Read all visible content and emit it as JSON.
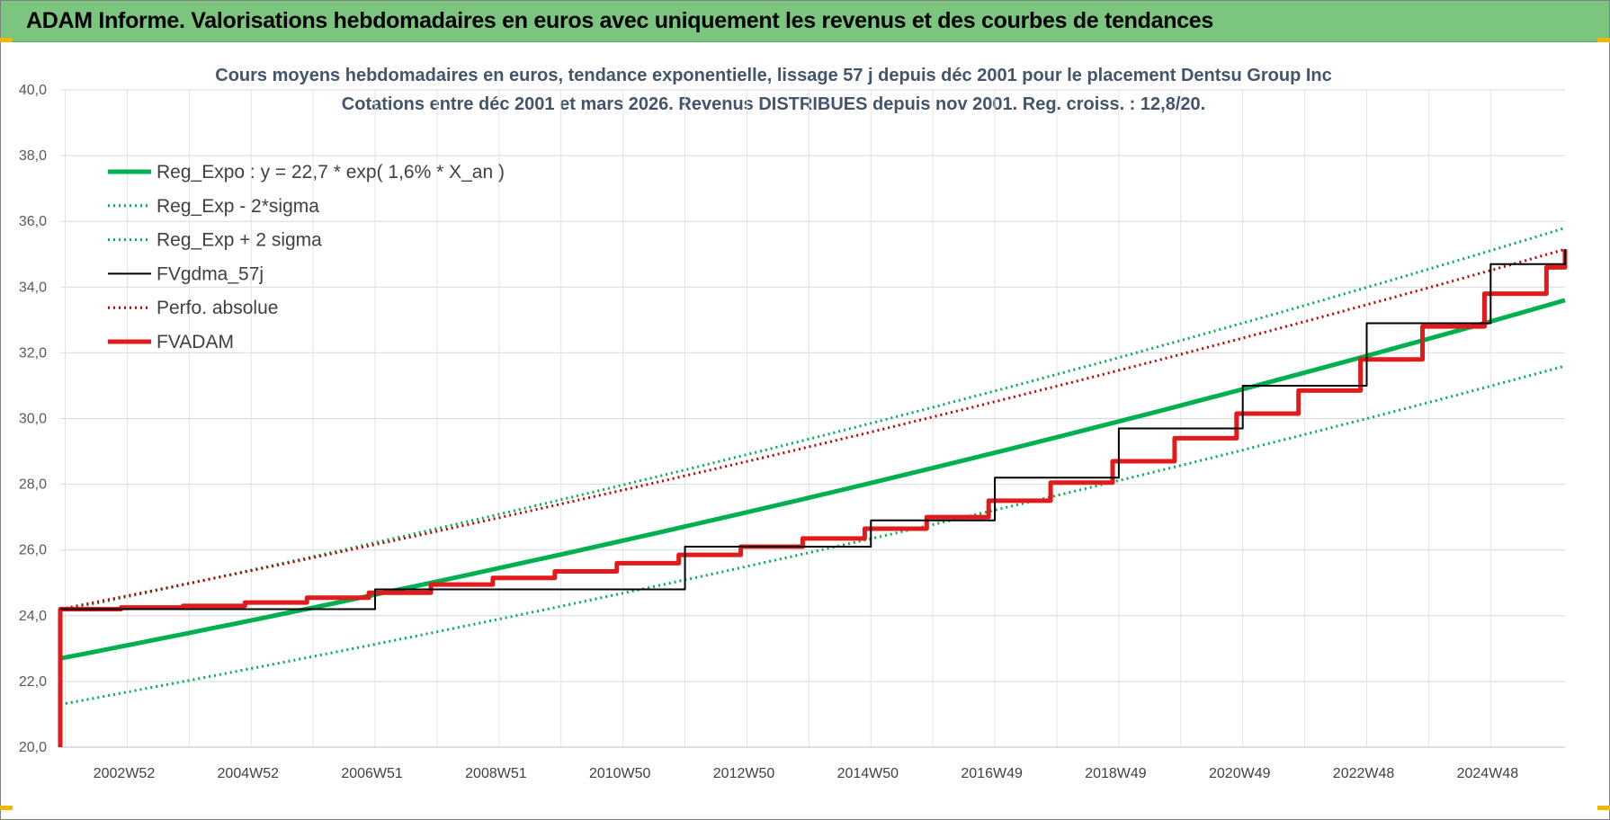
{
  "header": {
    "title": "ADAM Informe. Valorisations hebdomadaires en euros avec uniquement les revenus et des courbes de tendances"
  },
  "chart_data": {
    "type": "line",
    "title": "Cours moyens hebdomadaires en euros, tendance exponentielle, lissage 57 j depuis déc 2001 pour le placement Dentsu Group Inc",
    "subtitle": "Cotations entre déc 2001 et mars 2026. Revenus DISTRIBUES depuis nov 2001. Reg. croiss. : 12,8/20.",
    "xlabel": "",
    "ylabel": "",
    "ylim": [
      20,
      40
    ],
    "xlim": [
      2001.92,
      2026.2
    ],
    "yticks": [
      "20,0",
      "22,0",
      "24,0",
      "26,0",
      "28,0",
      "30,0",
      "32,0",
      "34,0",
      "36,0",
      "38,0",
      "40,0"
    ],
    "xticks": [
      "2002W52",
      "2004W52",
      "2006W51",
      "2008W51",
      "2010W50",
      "2012W50",
      "2014W50",
      "2016W49",
      "2018W49",
      "2020W49",
      "2022W48",
      "2024W48"
    ],
    "grid": true,
    "legend_position": "top-left",
    "series": [
      {
        "name": "Reg_Expo : y = 22,7 * exp( 1,6% *  X_an )",
        "color": "#00b050",
        "style": "solid-thick",
        "x": [
          2001.92,
          2026.2
        ],
        "y": [
          22.7,
          33.6
        ]
      },
      {
        "name": "Reg_Exp - 2*sigma",
        "color": "#00b050",
        "style": "dotted",
        "x": [
          2001.92,
          2026.2
        ],
        "y": [
          21.3,
          31.6
        ]
      },
      {
        "name": "Reg_Exp + 2 sigma",
        "color": "#00b050",
        "style": "dotted",
        "x": [
          2001.92,
          2026.2
        ],
        "y": [
          24.15,
          35.8
        ]
      },
      {
        "name": "FVgdma_57j",
        "color": "#000000",
        "style": "solid-thin",
        "x": [
          2001.92,
          2007.0,
          2012.0,
          2015.0,
          2017.0,
          2019.0,
          2021.0,
          2023.0,
          2025.0,
          2026.2
        ],
        "y": [
          24.2,
          24.8,
          26.1,
          26.9,
          28.2,
          29.7,
          31.0,
          32.9,
          34.7,
          35.15
        ]
      },
      {
        "name": "Perfo. absolue",
        "color": "#c00000",
        "style": "dotted",
        "x": [
          2001.92,
          2026.2
        ],
        "y": [
          24.2,
          35.15
        ]
      },
      {
        "name": "FVADAM",
        "color": "#e31a1c",
        "style": "solid-thick",
        "x": [
          2001.92,
          2001.92,
          2002.9,
          2003.9,
          2004.9,
          2005.9,
          2006.9,
          2007.9,
          2008.9,
          2009.9,
          2010.9,
          2011.9,
          2012.9,
          2013.9,
          2014.9,
          2015.9,
          2016.9,
          2017.9,
          2018.9,
          2019.9,
          2020.9,
          2021.9,
          2022.9,
          2023.9,
          2024.9,
          2025.9,
          2026.2
        ],
        "y": [
          20.0,
          24.2,
          24.25,
          24.3,
          24.4,
          24.55,
          24.7,
          24.95,
          25.15,
          25.35,
          25.6,
          25.85,
          26.1,
          26.35,
          26.65,
          27.0,
          27.5,
          28.05,
          28.7,
          29.4,
          30.15,
          30.85,
          31.8,
          32.8,
          33.8,
          34.6,
          35.15
        ]
      }
    ]
  }
}
